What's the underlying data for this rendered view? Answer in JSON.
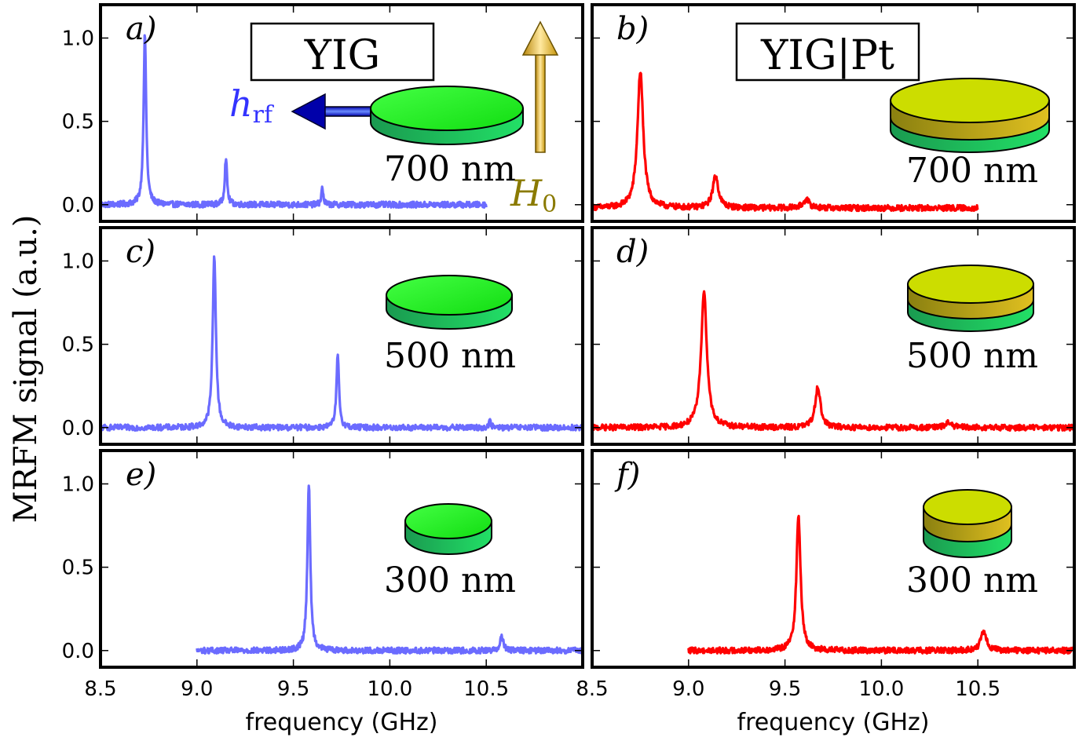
{
  "figure": {
    "ylabel": "MRFM signal (a.u.)",
    "colors": {
      "yig": "#6b6bff",
      "yigpt": "#ff0000",
      "disk_green": "#22ee22",
      "disk_pt": "#c8d400",
      "hrf": "#0000cc",
      "h0": "#8a7a00"
    }
  },
  "annotations": {
    "yig_title": "YIG",
    "yigpt_title": "YIG|Pt",
    "hrf_main": "h",
    "hrf_sub": "rf",
    "h0_main": "H",
    "h0_sub": "0"
  },
  "chart_data": [
    {
      "id": "a",
      "label": "a)",
      "type": "line",
      "series_name": "YIG",
      "thickness": "700 nm",
      "xlabel": "frequency (GHz)",
      "ylabel": "MRFM signal (a.u.)",
      "xlim": [
        8.5,
        11.0
      ],
      "ylim": [
        -0.1,
        1.2
      ],
      "x_ticks": [
        "8.5",
        "9.0",
        "9.5",
        "10.0",
        "10.5"
      ],
      "y_ticks": [
        "0.0",
        "0.5",
        "1.0"
      ],
      "x_range": [
        8.5,
        10.5
      ],
      "baseline": 0.0,
      "peaks": [
        {
          "x": 8.73,
          "y": 1.02,
          "w": 0.008
        },
        {
          "x": 9.15,
          "y": 0.28,
          "w": 0.007
        },
        {
          "x": 9.65,
          "y": 0.1,
          "w": 0.006
        }
      ]
    },
    {
      "id": "b",
      "label": "b)",
      "type": "line",
      "series_name": "YIG|Pt",
      "thickness": "700 nm",
      "xlabel": "frequency (GHz)",
      "ylabel": "",
      "xlim": [
        8.5,
        11.0
      ],
      "ylim": [
        -0.1,
        1.2
      ],
      "x_ticks": [
        "8.5",
        "9.0",
        "9.5",
        "10.0",
        "10.5"
      ],
      "y_ticks": [
        "0.0",
        "0.5",
        "1.0"
      ],
      "x_range": [
        8.5,
        10.5
      ],
      "baseline": -0.02,
      "peaks": [
        {
          "x": 8.75,
          "y": 0.82,
          "w": 0.018
        },
        {
          "x": 9.14,
          "y": 0.19,
          "w": 0.018
        },
        {
          "x": 9.61,
          "y": 0.05,
          "w": 0.02
        }
      ]
    },
    {
      "id": "c",
      "label": "c)",
      "type": "line",
      "series_name": "YIG",
      "thickness": "500 nm",
      "xlabel": "frequency (GHz)",
      "ylabel": "",
      "xlim": [
        8.5,
        11.0
      ],
      "ylim": [
        -0.1,
        1.2
      ],
      "x_ticks": [
        "8.5",
        "9.0",
        "9.5",
        "10.0",
        "10.5"
      ],
      "y_ticks": [
        "0.0",
        "0.5",
        "1.0"
      ],
      "x_range": [
        8.5,
        11.0
      ],
      "baseline": 0.0,
      "peaks": [
        {
          "x": 9.09,
          "y": 1.03,
          "w": 0.01
        },
        {
          "x": 9.73,
          "y": 0.43,
          "w": 0.008
        },
        {
          "x": 10.52,
          "y": 0.04,
          "w": 0.006
        }
      ]
    },
    {
      "id": "d",
      "label": "d)",
      "type": "line",
      "series_name": "YIG|Pt",
      "thickness": "500 nm",
      "xlabel": "frequency (GHz)",
      "ylabel": "",
      "xlim": [
        8.5,
        11.0
      ],
      "ylim": [
        -0.1,
        1.2
      ],
      "x_ticks": [
        "8.5",
        "9.0",
        "9.5",
        "10.0",
        "10.5"
      ],
      "y_ticks": [
        "0.0",
        "0.5",
        "1.0"
      ],
      "x_range": [
        8.5,
        11.0
      ],
      "baseline": 0.0,
      "peaks": [
        {
          "x": 9.08,
          "y": 0.82,
          "w": 0.018
        },
        {
          "x": 9.67,
          "y": 0.25,
          "w": 0.016
        },
        {
          "x": 10.35,
          "y": 0.03,
          "w": 0.02
        }
      ]
    },
    {
      "id": "e",
      "label": "e)",
      "type": "line",
      "series_name": "YIG",
      "thickness": "300 nm",
      "xlabel": "frequency (GHz)",
      "ylabel": "",
      "xlim": [
        8.5,
        11.0
      ],
      "ylim": [
        -0.1,
        1.2
      ],
      "x_ticks": [
        "8.5",
        "9.0",
        "9.5",
        "10.0",
        "10.5"
      ],
      "y_ticks": [
        "0.0",
        "0.5",
        "1.0"
      ],
      "x_range": [
        9.0,
        11.0
      ],
      "baseline": 0.0,
      "peaks": [
        {
          "x": 9.58,
          "y": 1.0,
          "w": 0.009
        },
        {
          "x": 10.58,
          "y": 0.09,
          "w": 0.01
        }
      ]
    },
    {
      "id": "f",
      "label": "f)",
      "type": "line",
      "series_name": "YIG|Pt",
      "thickness": "300 nm",
      "xlabel": "frequency (GHz)",
      "ylabel": "",
      "xlim": [
        8.5,
        11.0
      ],
      "ylim": [
        -0.1,
        1.2
      ],
      "x_ticks": [
        "8.5",
        "9.0",
        "9.5",
        "10.0",
        "10.5"
      ],
      "y_ticks": [
        "0.0",
        "0.5",
        "1.0"
      ],
      "x_range": [
        9.0,
        11.0
      ],
      "baseline": 0.0,
      "peaks": [
        {
          "x": 9.57,
          "y": 0.81,
          "w": 0.013
        },
        {
          "x": 10.53,
          "y": 0.11,
          "w": 0.018
        }
      ]
    }
  ]
}
